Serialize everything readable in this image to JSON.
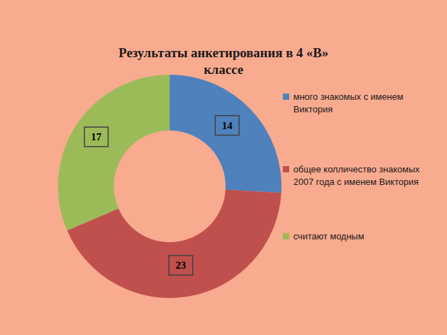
{
  "chart_data": {
    "type": "pie",
    "title": "Результаты анкетирования в 4 «В» классе",
    "categories": [
      "много знакомых с именем Виктория",
      "общее колличество знакомых 2007 года с именем Виктория",
      "считают модным"
    ],
    "values": [
      14,
      23,
      17
    ],
    "colors": [
      "#4f81bd",
      "#c0504d",
      "#9bbb59"
    ],
    "data_labels": true,
    "legend": "right"
  }
}
